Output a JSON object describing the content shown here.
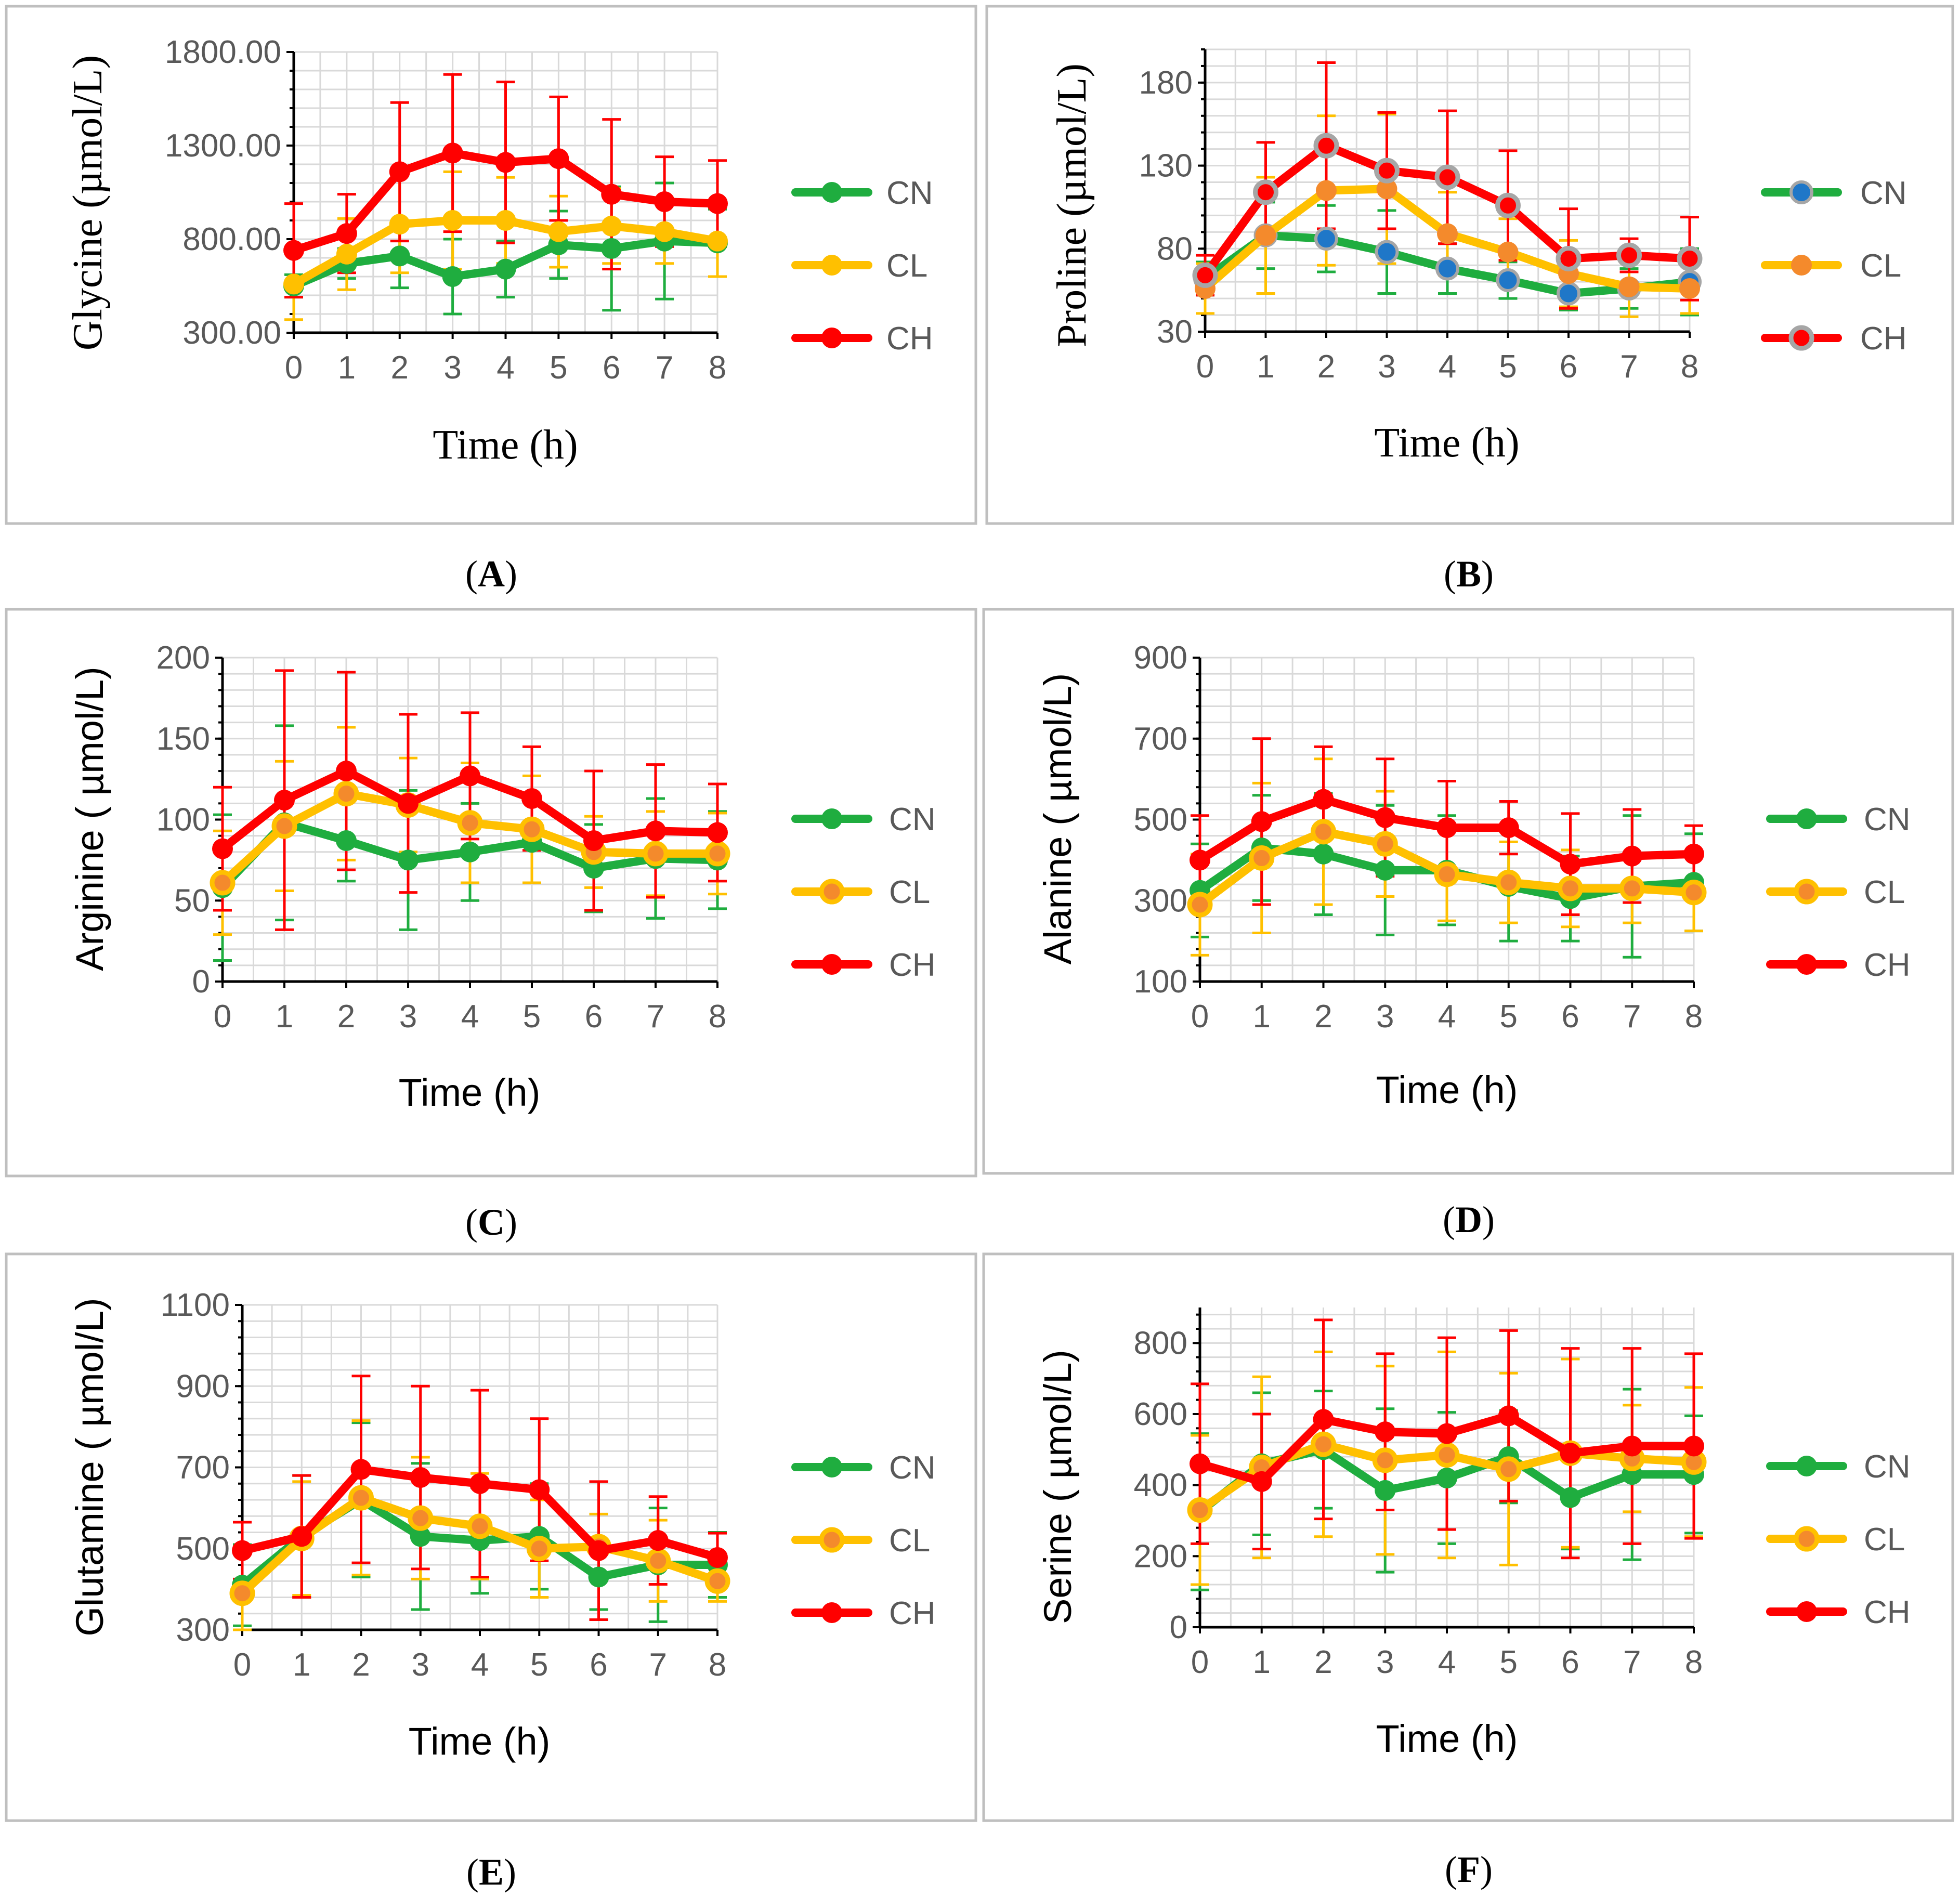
{
  "colors": {
    "CN": "#1fad3f",
    "CL": "#ffc000",
    "CH": "#ff0000",
    "marker_blue": "#1f77c8",
    "marker_orange": "#f48a2c",
    "marker_gray": "#a6a6a6"
  },
  "chart_data": [
    {
      "panel": "A",
      "caption_letter": "A",
      "type": "line",
      "title": "",
      "xlabel": "Time (h)",
      "ylabel": "Glycine (µmol/L)",
      "x": [
        0,
        1,
        2,
        3,
        4,
        5,
        6,
        7,
        8
      ],
      "ylim": [
        300,
        1800
      ],
      "yticks": [
        300,
        800,
        1300,
        1800
      ],
      "ytick_labels": [
        "300.00",
        "800.00",
        "1300.00",
        "1800.00"
      ],
      "legend_position": "right",
      "grid": true,
      "series": [
        {
          "name": "CN",
          "values": [
            550,
            670,
            710,
            600,
            640,
            770,
            750,
            790,
            780
          ],
          "errors": [
            60,
            80,
            170,
            200,
            150,
            180,
            330,
            310,
            180
          ]
        },
        {
          "name": "CL",
          "values": [
            560,
            720,
            880,
            900,
            900,
            840,
            870,
            840,
            790
          ],
          "errors": [
            190,
            190,
            260,
            260,
            230,
            190,
            200,
            170,
            190
          ]
        },
        {
          "name": "CH",
          "values": [
            740,
            830,
            1160,
            1260,
            1210,
            1230,
            1040,
            1000,
            990
          ],
          "errors": [
            250,
            210,
            370,
            420,
            430,
            330,
            400,
            240,
            230
          ]
        }
      ]
    },
    {
      "panel": "B",
      "caption_letter": "B",
      "type": "line",
      "title": "",
      "xlabel": "Time (h)",
      "ylabel": "Proline (µmol/L)",
      "x": [
        0,
        1,
        2,
        3,
        4,
        5,
        6,
        7,
        8
      ],
      "ylim": [
        30,
        200
      ],
      "yticks": [
        30,
        80,
        130,
        180
      ],
      "ytick_labels": [
        "30",
        "80",
        "130",
        "180"
      ],
      "legend_position": "right",
      "grid": true,
      "series": [
        {
          "name": "CN",
          "values": [
            62,
            88,
            86,
            78,
            68,
            61,
            53,
            56,
            60
          ],
          "errors": [
            10,
            20,
            20,
            25,
            15,
            11,
            10,
            12,
            20
          ]
        },
        {
          "name": "CL",
          "values": [
            56,
            88,
            115,
            116,
            89,
            78,
            65,
            57,
            56
          ],
          "errors": [
            15,
            35,
            45,
            45,
            25,
            20,
            20,
            18,
            15
          ]
        },
        {
          "name": "CH",
          "values": [
            64,
            114,
            142,
            127,
            123,
            106,
            74,
            76,
            74
          ],
          "errors": [
            12,
            30,
            50,
            35,
            40,
            33,
            30,
            10,
            25
          ]
        }
      ]
    },
    {
      "panel": "C",
      "caption_letter": "C",
      "type": "line",
      "title": "",
      "xlabel": "Time (h)",
      "ylabel": "Arginine ( µmol/L)",
      "x": [
        0,
        1,
        2,
        3,
        4,
        5,
        6,
        7,
        8
      ],
      "ylim": [
        0,
        200
      ],
      "yticks": [
        0,
        50,
        100,
        150,
        200
      ],
      "ytick_labels": [
        "0",
        "50",
        "100",
        "150",
        "200"
      ],
      "legend_position": "right",
      "grid": true,
      "series": [
        {
          "name": "CN",
          "values": [
            58,
            98,
            87,
            75,
            80,
            86,
            70,
            76,
            75
          ],
          "errors": [
            45,
            60,
            25,
            43,
            30,
            25,
            27,
            37,
            30
          ]
        },
        {
          "name": "CL",
          "values": [
            61,
            96,
            116,
            109,
            98,
            94,
            80,
            79,
            79
          ],
          "errors": [
            32,
            40,
            41,
            29,
            37,
            33,
            22,
            26,
            25
          ]
        },
        {
          "name": "CH",
          "values": [
            82,
            112,
            130,
            110,
            127,
            113,
            87,
            93,
            92
          ],
          "errors": [
            38,
            80,
            61,
            55,
            39,
            32,
            43,
            41,
            30
          ]
        }
      ]
    },
    {
      "panel": "D",
      "caption_letter": "D",
      "type": "line",
      "title": "",
      "xlabel": "Time (h)",
      "ylabel": "Alanine ( µmol/L)",
      "x": [
        0,
        1,
        2,
        3,
        4,
        5,
        6,
        7,
        8
      ],
      "ylim": [
        100,
        900
      ],
      "yticks": [
        100,
        300,
        500,
        700,
        900
      ],
      "ytick_labels": [
        "100",
        "300",
        "500",
        "700",
        "900"
      ],
      "legend_position": "right",
      "grid": true,
      "series": [
        {
          "name": "CN",
          "values": [
            325,
            430,
            415,
            375,
            375,
            335,
            305,
            335,
            345
          ],
          "errors": [
            115,
            130,
            150,
            160,
            135,
            135,
            105,
            175,
            120
          ]
        },
        {
          "name": "CL",
          "values": [
            290,
            405,
            470,
            440,
            365,
            345,
            330,
            330,
            320
          ],
          "errors": [
            125,
            185,
            180,
            130,
            115,
            100,
            95,
            85,
            95
          ]
        },
        {
          "name": "CH",
          "values": [
            400,
            495,
            550,
            505,
            480,
            480,
            390,
            410,
            415
          ],
          "errors": [
            110,
            205,
            130,
            145,
            115,
            65,
            125,
            115,
            70
          ]
        }
      ]
    },
    {
      "panel": "E",
      "caption_letter": "E",
      "type": "line",
      "title": "",
      "xlabel": "Time (h)",
      "ylabel": "Glutamine ( µmol/L)",
      "x": [
        0,
        1,
        2,
        3,
        4,
        5,
        6,
        7,
        8
      ],
      "ylim": [
        300,
        1100
      ],
      "yticks": [
        300,
        500,
        700,
        900,
        1100
      ],
      "ytick_labels": [
        "300",
        "500",
        "700",
        "900",
        "1100"
      ],
      "legend_position": "right",
      "grid": true,
      "series": [
        {
          "name": "CN",
          "values": [
            410,
            530,
            620,
            530,
            520,
            530,
            430,
            460,
            460
          ],
          "errors": [
            100,
            150,
            190,
            180,
            130,
            130,
            80,
            140,
            80
          ]
        },
        {
          "name": "CL",
          "values": [
            390,
            525,
            625,
            575,
            555,
            500,
            505,
            470,
            420
          ],
          "errors": [
            110,
            140,
            190,
            150,
            130,
            120,
            80,
            100,
            50
          ]
        },
        {
          "name": "CH",
          "values": [
            495,
            530,
            695,
            675,
            660,
            645,
            495,
            520,
            478
          ],
          "errors": [
            70,
            150,
            230,
            225,
            230,
            175,
            170,
            108,
            60
          ]
        }
      ]
    },
    {
      "panel": "F",
      "caption_letter": "F",
      "type": "line",
      "title": "",
      "xlabel": "Time (h)",
      "ylabel": "Serine ( µmol/L)",
      "x": [
        0,
        1,
        2,
        3,
        4,
        5,
        6,
        7,
        8
      ],
      "ylim": [
        0,
        900
      ],
      "yticks": [
        0,
        200,
        400,
        600,
        800
      ],
      "ytick_labels": [
        "0",
        "200",
        "400",
        "600",
        "800"
      ],
      "legend_position": "right",
      "grid": true,
      "series": [
        {
          "name": "CN",
          "values": [
            325,
            460,
            500,
            385,
            420,
            480,
            365,
            430,
            430
          ],
          "errors": [
            220,
            200,
            165,
            230,
            185,
            130,
            145,
            240,
            165
          ]
        },
        {
          "name": "CL",
          "values": [
            330,
            450,
            515,
            470,
            485,
            445,
            490,
            475,
            465
          ],
          "errors": [
            210,
            255,
            260,
            265,
            290,
            270,
            265,
            150,
            210
          ]
        },
        {
          "name": "CH",
          "values": [
            460,
            410,
            585,
            550,
            545,
            595,
            490,
            510,
            510
          ],
          "errors": [
            225,
            190,
            280,
            220,
            270,
            240,
            295,
            275,
            260
          ]
        }
      ]
    }
  ]
}
